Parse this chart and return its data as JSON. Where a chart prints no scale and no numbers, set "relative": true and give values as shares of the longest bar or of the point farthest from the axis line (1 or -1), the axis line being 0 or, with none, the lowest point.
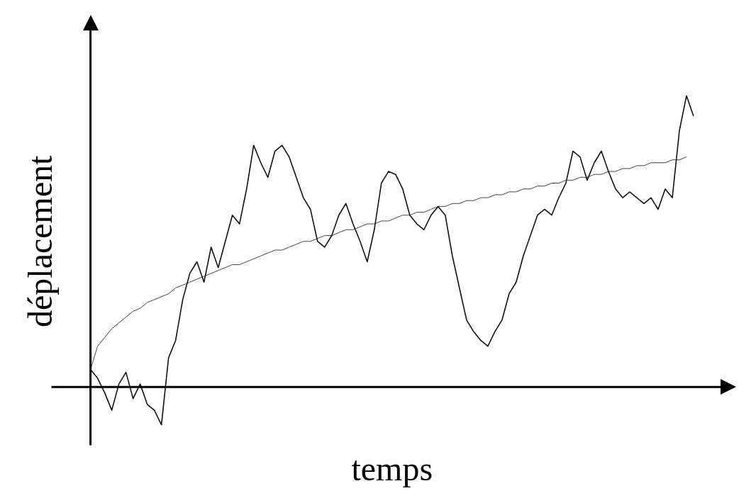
{
  "chart_data": {
    "type": "line",
    "relative": true,
    "xlabel": "temps",
    "ylabel": "déplacement",
    "grid": false,
    "legend": false,
    "marker": "none",
    "line_style": "solid",
    "categories": [
      null,
      null,
      null,
      null,
      null,
      null,
      null,
      null,
      null,
      null,
      null,
      null,
      null,
      null,
      null,
      null,
      null,
      null,
      null,
      null,
      null,
      null,
      null,
      null,
      null,
      null,
      null,
      null,
      null,
      null,
      null,
      null,
      null,
      null,
      null,
      null,
      null,
      null,
      null,
      null,
      null,
      null,
      null,
      null,
      null,
      null,
      null,
      null,
      null,
      null,
      null,
      null,
      null,
      null,
      null,
      null,
      null,
      null,
      null,
      null,
      null,
      null,
      null,
      null,
      null,
      null,
      null,
      null,
      null,
      null,
      null,
      null,
      null,
      null,
      null,
      null,
      null,
      null,
      null,
      null,
      null,
      null,
      null,
      null,
      null,
      null
    ],
    "series": [
      {
        "color": "#111111",
        "values": [
          0.06,
          0.03,
          -0.02,
          -0.08,
          0.01,
          0.05,
          -0.04,
          0.01,
          -0.06,
          -0.08,
          -0.13,
          0.1,
          0.16,
          0.3,
          0.39,
          0.43,
          0.36,
          0.48,
          0.41,
          0.5,
          0.59,
          0.56,
          0.68,
          0.83,
          0.77,
          0.72,
          0.81,
          0.83,
          0.79,
          0.72,
          0.65,
          0.61,
          0.5,
          0.48,
          0.52,
          0.59,
          0.63,
          0.56,
          0.5,
          0.43,
          0.54,
          0.7,
          0.74,
          0.73,
          0.68,
          0.59,
          0.56,
          0.54,
          0.59,
          0.62,
          0.59,
          0.45,
          0.34,
          0.23,
          0.19,
          0.16,
          0.14,
          0.19,
          0.23,
          0.32,
          0.36,
          0.45,
          0.52,
          0.59,
          0.61,
          0.59,
          0.65,
          0.7,
          0.81,
          0.79,
          0.71,
          0.77,
          0.81,
          0.74,
          0.68,
          0.65,
          0.67,
          0.65,
          0.63,
          0.65,
          0.61,
          0.68,
          0.65,
          0.88,
          1,
          0.93
        ]
      },
      {
        "color": "#444444",
        "values": [
          0.06,
          0.14,
          0.17,
          0.2,
          0.22,
          0.24,
          0.26,
          0.27,
          0.29,
          0.3,
          0.31,
          0.32,
          0.34,
          0.35,
          0.36,
          0.37,
          0.38,
          0.39,
          0.4,
          0.41,
          0.42,
          0.42,
          0.43,
          0.44,
          0.45,
          0.46,
          0.47,
          0.47,
          0.48,
          0.49,
          0.5,
          0.5,
          0.51,
          0.52,
          0.52,
          0.53,
          0.54,
          0.54,
          0.55,
          0.56,
          0.56,
          0.57,
          0.57,
          0.58,
          0.59,
          0.59,
          0.6,
          0.6,
          0.61,
          0.62,
          0.62,
          0.63,
          0.63,
          0.64,
          0.64,
          0.65,
          0.65,
          0.66,
          0.66,
          0.67,
          0.67,
          0.68,
          0.68,
          0.69,
          0.69,
          0.7,
          0.7,
          0.71,
          0.71,
          0.72,
          0.72,
          0.73,
          0.73,
          0.74,
          0.74,
          0.75,
          0.75,
          0.76,
          0.76,
          0.77,
          0.77,
          0.77,
          0.78,
          0.78,
          0.79,
          null
        ]
      }
    ]
  }
}
